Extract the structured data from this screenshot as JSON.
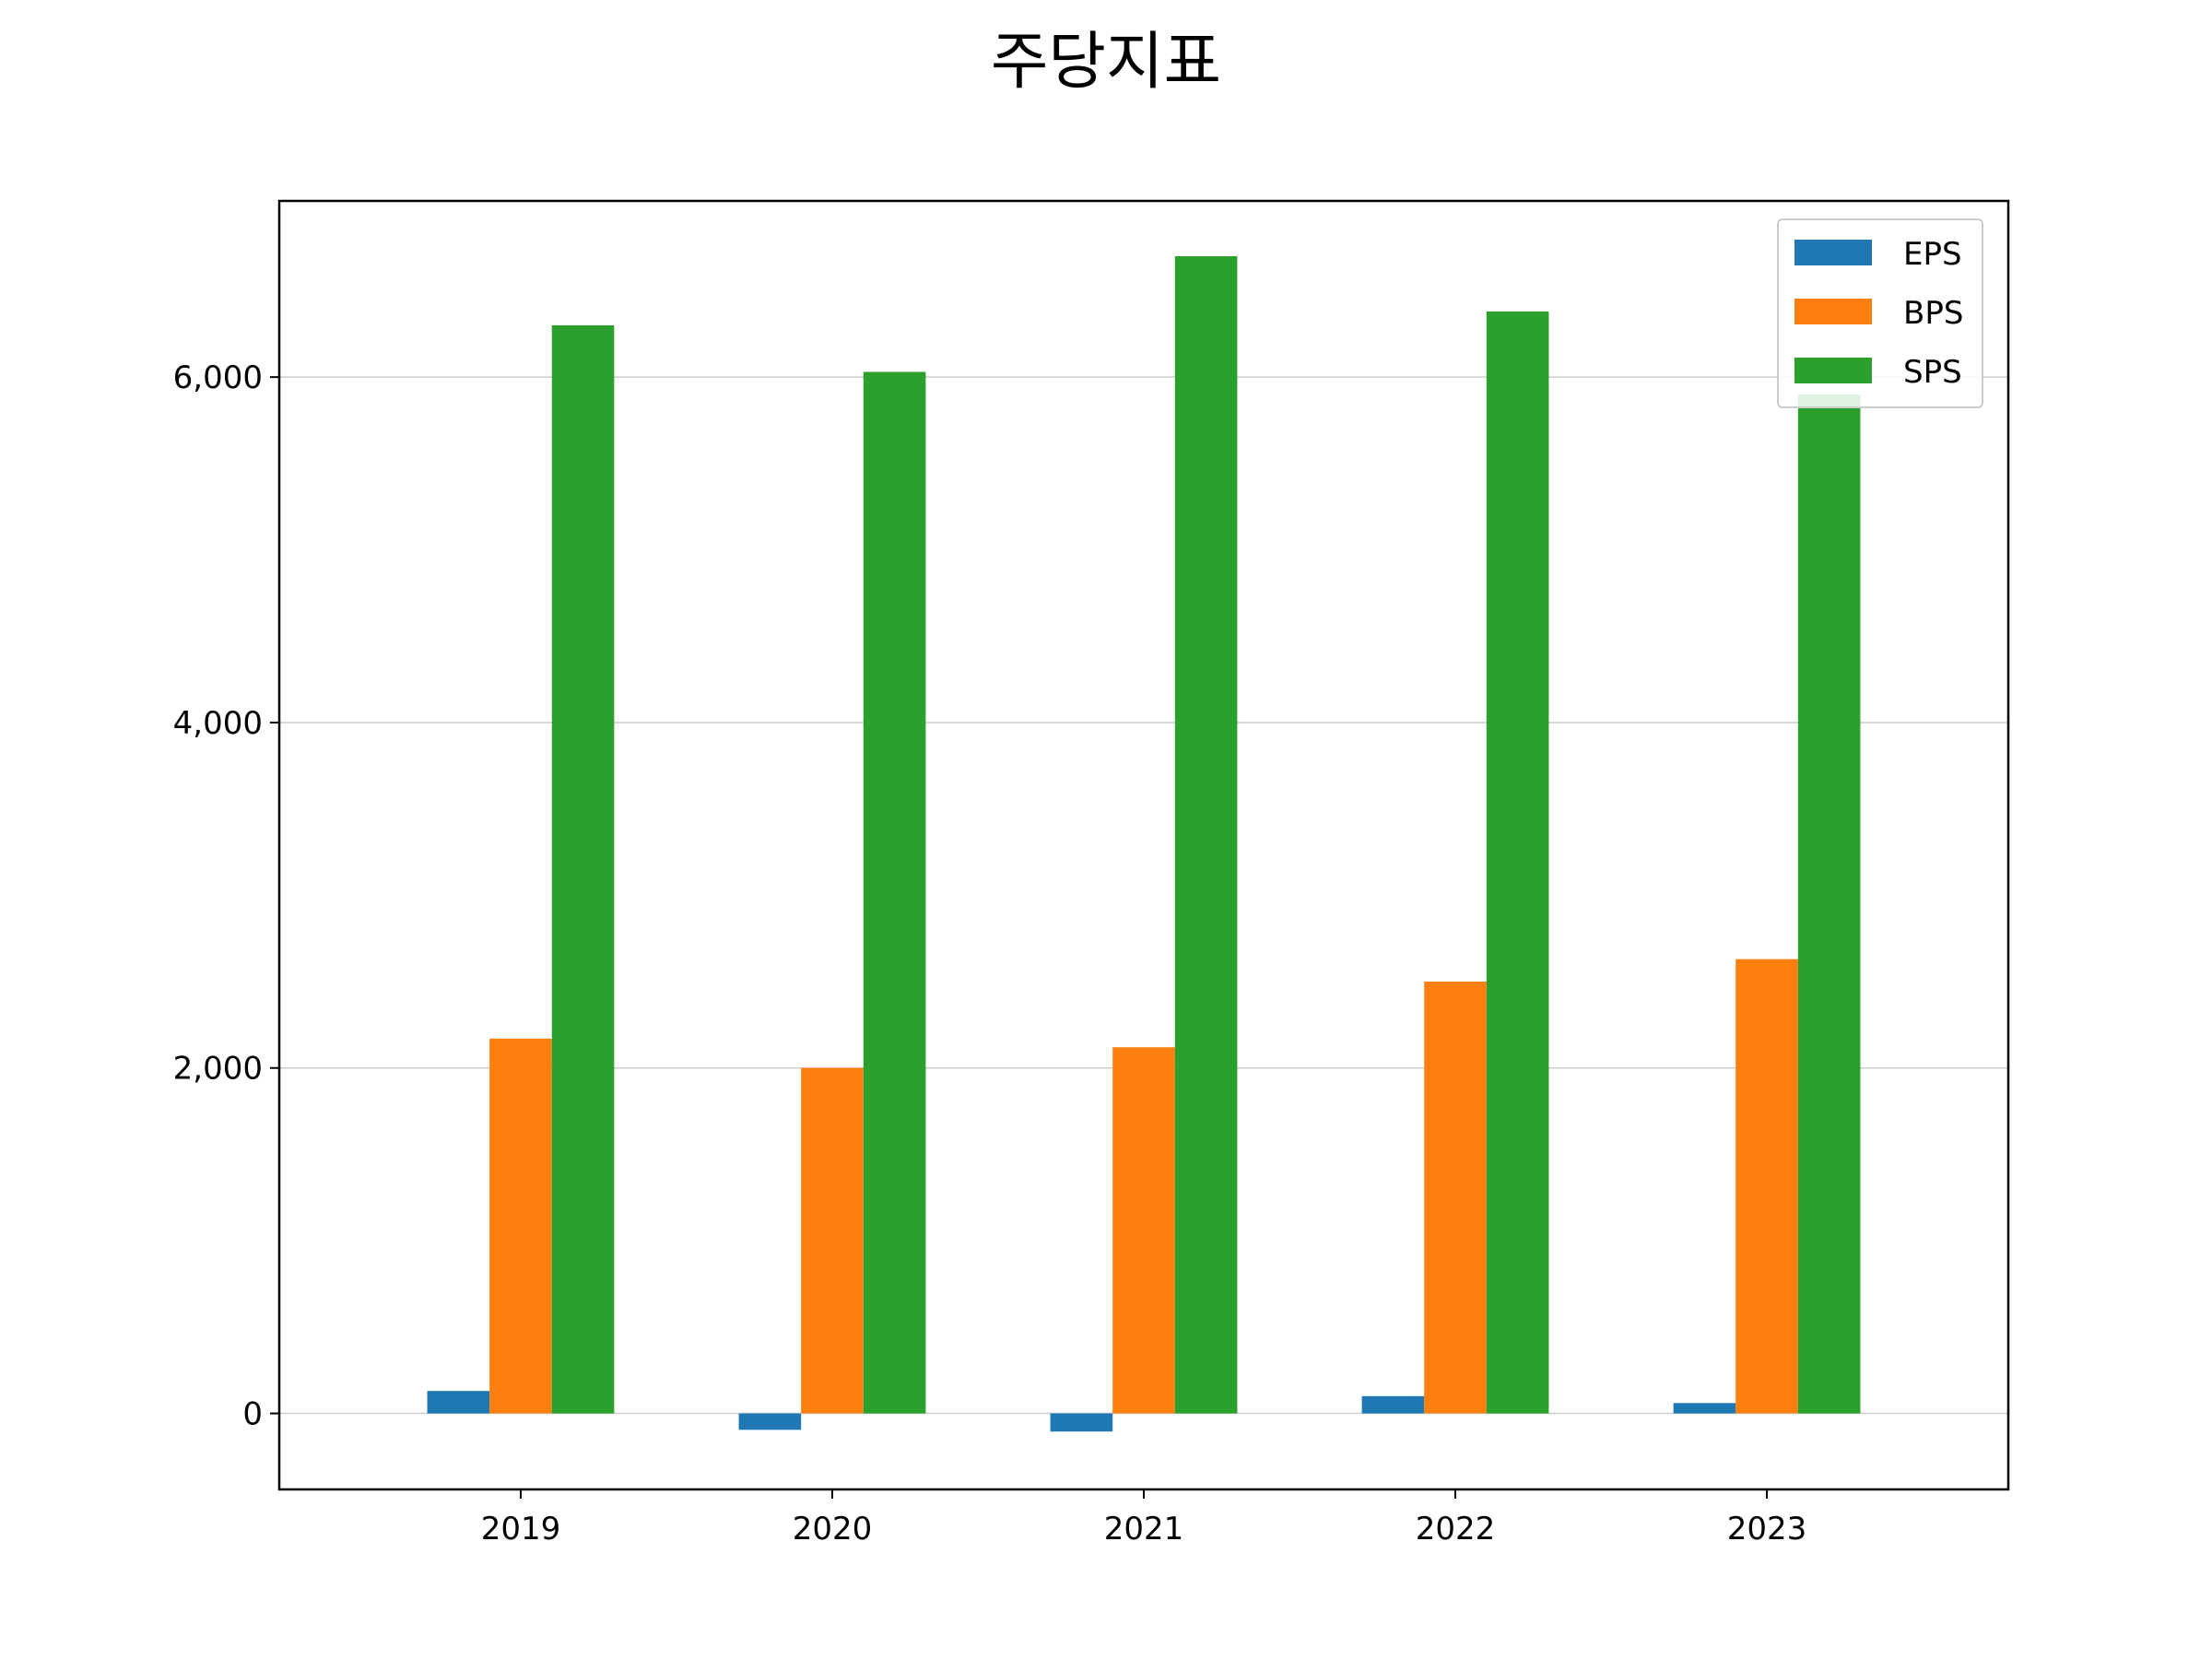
{
  "chart_data": {
    "type": "bar",
    "title": "주당지표",
    "xlabel": "",
    "ylabel": "",
    "categories": [
      "2019",
      "2020",
      "2021",
      "2022",
      "2023"
    ],
    "series": [
      {
        "name": "EPS",
        "color": "#1f77b4",
        "values": [
          130,
          -95,
          -105,
          100,
          60
        ]
      },
      {
        "name": "BPS",
        "color": "#ff7f0e",
        "values": [
          2170,
          2000,
          2120,
          2500,
          2630
        ]
      },
      {
        "name": "SPS",
        "color": "#2ca02c",
        "values": [
          6300,
          6030,
          6700,
          6380,
          5900
        ]
      }
    ],
    "ylim": [
      -440,
      7020
    ],
    "yticks": [
      0,
      2000,
      4000,
      6000
    ],
    "ytick_labels": [
      "0",
      "2,000",
      "4,000",
      "6,000"
    ],
    "grid": "y",
    "legend": "top-right"
  }
}
